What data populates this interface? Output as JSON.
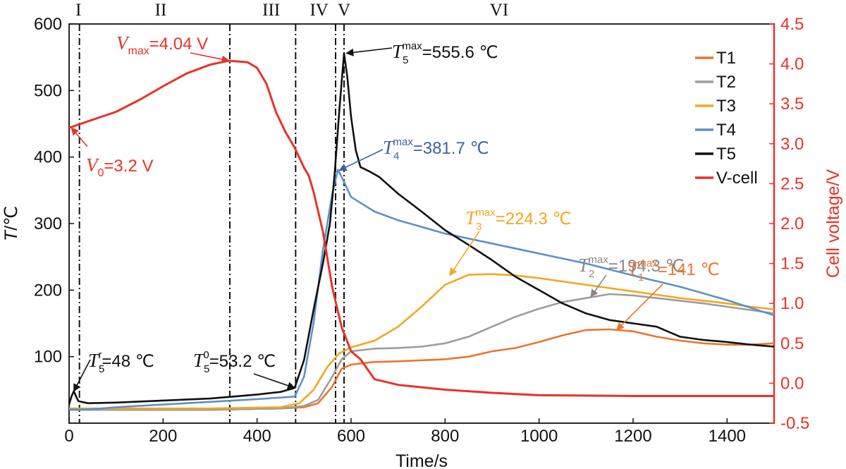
{
  "chart_data": {
    "type": "line",
    "x_axis": {
      "label": "Time/s",
      "min": 0,
      "max": 1500,
      "ticks": [
        0,
        200,
        400,
        600,
        800,
        1000,
        1200,
        1400
      ]
    },
    "y_left": {
      "label_italic": "T",
      "label_rest": "/℃",
      "min": 0,
      "max": 600,
      "ticks": [
        100,
        200,
        300,
        400,
        500,
        600
      ]
    },
    "y_right": {
      "label": "Cell voltage/V",
      "color": "#e8332a",
      "min": -0.5,
      "max": 4.5,
      "ticks": [
        -0.5,
        0.0,
        0.5,
        1.0,
        1.5,
        2.0,
        2.5,
        3.0,
        3.5,
        4.0,
        4.5
      ],
      "tick_labels": [
        "-0.5",
        "0.0",
        "0.5",
        "1.0",
        "1.5",
        "2.0",
        "2.5",
        "3.0",
        "3.5",
        "4.0",
        "4.5"
      ]
    },
    "stages": [
      {
        "label": "I",
        "x": 20
      },
      {
        "label": "II",
        "x": 195
      },
      {
        "label": "III",
        "x": 430
      },
      {
        "label": "IV",
        "x": 532
      },
      {
        "label": "V",
        "x": 585
      },
      {
        "label": "VI",
        "x": 915
      }
    ],
    "stage_lines": [
      22,
      342,
      482,
      567,
      585
    ],
    "series": [
      {
        "name": "T1",
        "axis": "left",
        "color": "#e8772e",
        "points": [
          [
            0,
            20
          ],
          [
            300,
            20
          ],
          [
            450,
            22
          ],
          [
            500,
            24
          ],
          [
            530,
            30
          ],
          [
            560,
            55
          ],
          [
            580,
            82
          ],
          [
            600,
            88
          ],
          [
            650,
            92
          ],
          [
            700,
            93
          ],
          [
            800,
            96
          ],
          [
            850,
            100
          ],
          [
            900,
            108
          ],
          [
            950,
            113
          ],
          [
            1000,
            122
          ],
          [
            1050,
            132
          ],
          [
            1100,
            140
          ],
          [
            1150,
            141
          ],
          [
            1200,
            138
          ],
          [
            1250,
            130
          ],
          [
            1300,
            124
          ],
          [
            1350,
            120
          ],
          [
            1400,
            118
          ],
          [
            1450,
            118
          ],
          [
            1500,
            120
          ]
        ]
      },
      {
        "name": "T2",
        "axis": "left",
        "color": "#a09c9c",
        "points": [
          [
            0,
            20
          ],
          [
            300,
            20
          ],
          [
            450,
            22
          ],
          [
            500,
            26
          ],
          [
            530,
            35
          ],
          [
            560,
            70
          ],
          [
            580,
            96
          ],
          [
            600,
            108
          ],
          [
            650,
            112
          ],
          [
            700,
            113
          ],
          [
            750,
            115
          ],
          [
            800,
            120
          ],
          [
            850,
            130
          ],
          [
            900,
            145
          ],
          [
            950,
            160
          ],
          [
            1000,
            172
          ],
          [
            1050,
            182
          ],
          [
            1100,
            188
          ],
          [
            1150,
            194
          ],
          [
            1200,
            192
          ],
          [
            1250,
            188
          ],
          [
            1300,
            184
          ],
          [
            1350,
            180
          ],
          [
            1400,
            175
          ],
          [
            1450,
            170
          ],
          [
            1500,
            165
          ]
        ]
      },
      {
        "name": "T3",
        "axis": "left",
        "color": "#f2a81f",
        "points": [
          [
            0,
            22
          ],
          [
            300,
            22
          ],
          [
            450,
            24
          ],
          [
            490,
            30
          ],
          [
            520,
            50
          ],
          [
            550,
            85
          ],
          [
            575,
            105
          ],
          [
            600,
            114
          ],
          [
            650,
            124
          ],
          [
            700,
            145
          ],
          [
            750,
            175
          ],
          [
            800,
            208
          ],
          [
            850,
            223
          ],
          [
            900,
            224
          ],
          [
            950,
            222
          ],
          [
            1000,
            218
          ],
          [
            1050,
            213
          ],
          [
            1100,
            208
          ],
          [
            1150,
            203
          ],
          [
            1200,
            198
          ],
          [
            1250,
            193
          ],
          [
            1300,
            188
          ],
          [
            1350,
            184
          ],
          [
            1400,
            180
          ],
          [
            1450,
            175
          ],
          [
            1500,
            171
          ]
        ]
      },
      {
        "name": "T4",
        "axis": "left",
        "color": "#5b91c9",
        "points": [
          [
            0,
            20
          ],
          [
            50,
            21
          ],
          [
            100,
            24
          ],
          [
            200,
            28
          ],
          [
            300,
            32
          ],
          [
            400,
            36
          ],
          [
            480,
            40
          ],
          [
            500,
            70
          ],
          [
            520,
            150
          ],
          [
            540,
            260
          ],
          [
            560,
            345
          ],
          [
            572,
            381
          ],
          [
            580,
            370
          ],
          [
            600,
            340
          ],
          [
            650,
            318
          ],
          [
            700,
            305
          ],
          [
            800,
            285
          ],
          [
            900,
            270
          ],
          [
            1000,
            255
          ],
          [
            1100,
            240
          ],
          [
            1200,
            222
          ],
          [
            1300,
            205
          ],
          [
            1400,
            185
          ],
          [
            1500,
            162
          ]
        ]
      },
      {
        "name": "T5",
        "axis": "left",
        "color": "#111111",
        "points": [
          [
            0,
            28
          ],
          [
            5,
            40
          ],
          [
            10,
            48
          ],
          [
            15,
            40
          ],
          [
            20,
            33
          ],
          [
            40,
            30
          ],
          [
            100,
            31
          ],
          [
            200,
            34
          ],
          [
            300,
            37
          ],
          [
            400,
            43
          ],
          [
            450,
            47
          ],
          [
            480,
            53
          ],
          [
            500,
            95
          ],
          [
            520,
            170
          ],
          [
            540,
            240
          ],
          [
            555,
            300
          ],
          [
            565,
            375
          ],
          [
            575,
            470
          ],
          [
            585,
            556
          ],
          [
            592,
            520
          ],
          [
            600,
            460
          ],
          [
            610,
            410
          ],
          [
            620,
            385
          ],
          [
            640,
            378
          ],
          [
            660,
            370
          ],
          [
            700,
            345
          ],
          [
            750,
            318
          ],
          [
            800,
            290
          ],
          [
            850,
            268
          ],
          [
            900,
            245
          ],
          [
            950,
            220
          ],
          [
            1000,
            200
          ],
          [
            1050,
            180
          ],
          [
            1100,
            165
          ],
          [
            1150,
            155
          ],
          [
            1200,
            150
          ],
          [
            1250,
            145
          ],
          [
            1300,
            130
          ],
          [
            1350,
            125
          ],
          [
            1400,
            122
          ],
          [
            1450,
            118
          ],
          [
            1500,
            115
          ]
        ]
      },
      {
        "name": "V-cell",
        "axis": "right",
        "color": "#e8332a",
        "points": [
          [
            0,
            3.2
          ],
          [
            50,
            3.3
          ],
          [
            100,
            3.4
          ],
          [
            150,
            3.55
          ],
          [
            200,
            3.72
          ],
          [
            250,
            3.88
          ],
          [
            300,
            3.99
          ],
          [
            340,
            4.04
          ],
          [
            380,
            4.02
          ],
          [
            400,
            3.95
          ],
          [
            420,
            3.75
          ],
          [
            440,
            3.4
          ],
          [
            460,
            3.15
          ],
          [
            480,
            2.95
          ],
          [
            500,
            2.7
          ],
          [
            510,
            2.6
          ],
          [
            520,
            2.4
          ],
          [
            540,
            1.9
          ],
          [
            560,
            1.2
          ],
          [
            580,
            0.7
          ],
          [
            600,
            0.4
          ],
          [
            620,
            0.3
          ],
          [
            650,
            0.05
          ],
          [
            700,
            -0.02
          ],
          [
            800,
            -0.08
          ],
          [
            900,
            -0.12
          ],
          [
            1000,
            -0.15
          ],
          [
            1200,
            -0.16
          ],
          [
            1500,
            -0.16
          ]
        ]
      }
    ],
    "legend": {
      "position": "right",
      "items": [
        "T1",
        "T2",
        "T3",
        "T4",
        "T5",
        "V-cell"
      ]
    },
    "annotations": [
      {
        "id": "vmax",
        "color": "#e8332a",
        "sym": "V",
        "sub": "max",
        "val": "=4.04 V",
        "pt_x": 340,
        "pt_y": 4.04,
        "axis": "right"
      },
      {
        "id": "v0",
        "color": "#e8332a",
        "sym": "V",
        "sub": "0",
        "val": "=3.2 V",
        "pt_x": 5,
        "pt_y": 3.2,
        "axis": "right"
      },
      {
        "id": "t5max",
        "color": "#111111",
        "sym": "T",
        "sub": "5",
        "sup": "max",
        "val": "=555.6 ℃",
        "pt_x": 590,
        "pt_y": 556,
        "axis": "left"
      },
      {
        "id": "t4max",
        "color": "#3e5fa3",
        "sym": "T",
        "sub": "4",
        "sup": "max",
        "val": "=381.7 ℃",
        "pt_x": 575,
        "pt_y": 380,
        "axis": "left"
      },
      {
        "id": "t3max",
        "color": "#f2a81f",
        "sym": "T",
        "sub": "3",
        "sup": "max",
        "val": "=224.3 ℃",
        "pt_x": 810,
        "pt_y": 222,
        "axis": "left"
      },
      {
        "id": "t2max",
        "color": "#8c8888",
        "sym": "T",
        "sub": "2",
        "sup": "max",
        "val": "=194.3 ℃",
        "pt_x": 1110,
        "pt_y": 190,
        "axis": "left"
      },
      {
        "id": "t1max",
        "color": "#e8772e",
        "sym": "T",
        "sub": "1",
        "sup": "max",
        "val": "=141 ℃",
        "pt_x": 1165,
        "pt_y": 140,
        "axis": "left"
      },
      {
        "id": "t5r",
        "color": "#111111",
        "sym": "T",
        "sub": "5",
        "sup": "r",
        "val": "=48 ℃",
        "pt_x": 10,
        "pt_y": 48,
        "axis": "left"
      },
      {
        "id": "t50",
        "color": "#111111",
        "sym": "T",
        "sub": "5",
        "sup": "0",
        "val": "=53.2 ℃",
        "pt_x": 480,
        "pt_y": 53,
        "axis": "left"
      }
    ]
  }
}
